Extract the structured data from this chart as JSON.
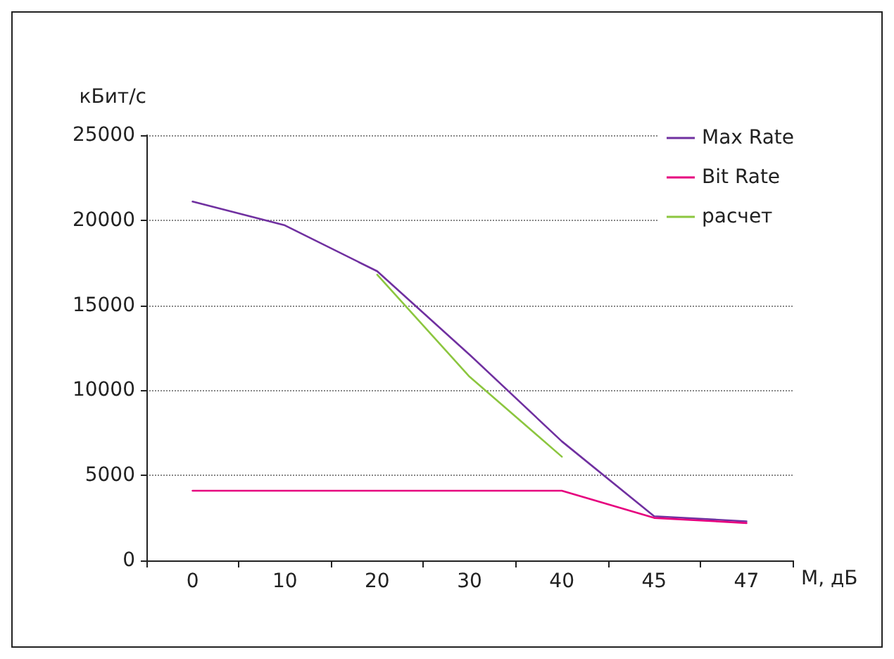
{
  "chart_data": {
    "type": "line",
    "xlabel": "M, дБ",
    "ylabel": "кБит/с",
    "categories": [
      "0",
      "10",
      "20",
      "30",
      "40",
      "45",
      "47"
    ],
    "series": [
      {
        "name": "Max Rate",
        "color": "#7030a0",
        "values": [
          21100,
          19700,
          17000,
          12100,
          7000,
          2600,
          2300
        ]
      },
      {
        "name": "Bit Rate",
        "color": "#e6007e",
        "values": [
          4100,
          4100,
          4100,
          4100,
          4100,
          2500,
          2200
        ]
      },
      {
        "name": "расчет",
        "color": "#8cc63f",
        "values": [
          null,
          null,
          16800,
          10800,
          6100,
          null,
          null
        ]
      }
    ],
    "ylim": [
      0,
      25000
    ],
    "yticks": [
      0,
      5000,
      10000,
      15000,
      20000,
      25000
    ],
    "grid": "y",
    "legend": "top right",
    "marker": "none",
    "line_style": "solid"
  }
}
